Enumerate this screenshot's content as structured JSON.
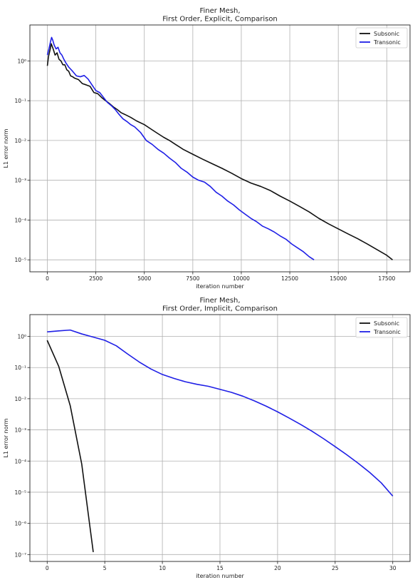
{
  "chart_data": [
    {
      "type": "line",
      "title": "Finer Mesh,\nFirst Order, Explicit, Comparison",
      "xlabel": "iteration number",
      "ylabel": "L1 error norm",
      "yscale": "log",
      "xlim": [
        -900,
        18700
      ],
      "ylim": [
        5e-06,
        8
      ],
      "xticks": [
        0,
        2500,
        5000,
        7500,
        10000,
        12500,
        15000,
        17500
      ],
      "yticks": [
        1,
        0.1,
        0.01,
        0.001,
        0.0001,
        1e-05
      ],
      "ytick_labels": [
        "10⁰",
        "10⁻¹",
        "10⁻²",
        "10⁻³",
        "10⁻⁴",
        "10⁻⁵"
      ],
      "grid": true,
      "legend": "top-right",
      "series": [
        {
          "name": "Subsonic",
          "color": "#111111",
          "points": [
            [
              0,
              0.75
            ],
            [
              60,
              1.3
            ],
            [
              150,
              2.0
            ],
            [
              200,
              2.7
            ],
            [
              300,
              2.0
            ],
            [
              400,
              1.4
            ],
            [
              500,
              1.6
            ],
            [
              600,
              1.1
            ],
            [
              700,
              1.0
            ],
            [
              800,
              0.8
            ],
            [
              900,
              0.8
            ],
            [
              1000,
              0.6
            ],
            [
              1100,
              0.55
            ],
            [
              1200,
              0.42
            ],
            [
              1300,
              0.4
            ],
            [
              1400,
              0.37
            ],
            [
              1600,
              0.34
            ],
            [
              1800,
              0.27
            ],
            [
              2000,
              0.25
            ],
            [
              2200,
              0.23
            ],
            [
              2400,
              0.16
            ],
            [
              2600,
              0.15
            ],
            [
              2800,
              0.12
            ],
            [
              3000,
              0.1
            ],
            [
              3200,
              0.085
            ],
            [
              3400,
              0.07
            ],
            [
              3600,
              0.06
            ],
            [
              3800,
              0.05
            ],
            [
              4000,
              0.045
            ],
            [
              4300,
              0.038
            ],
            [
              4600,
              0.031
            ],
            [
              5000,
              0.025
            ],
            [
              5300,
              0.02
            ],
            [
              5600,
              0.016
            ],
            [
              6000,
              0.012
            ],
            [
              6300,
              0.01
            ],
            [
              6600,
              0.008
            ],
            [
              7000,
              0.006
            ],
            [
              7500,
              0.0045
            ],
            [
              8000,
              0.0034
            ],
            [
              8500,
              0.0026
            ],
            [
              9000,
              0.002
            ],
            [
              9500,
              0.0015
            ],
            [
              10000,
              0.0011
            ],
            [
              10500,
              0.00085
            ],
            [
              11000,
              0.0007
            ],
            [
              11500,
              0.00055
            ],
            [
              12000,
              0.0004
            ],
            [
              12500,
              0.0003
            ],
            [
              13000,
              0.00022
            ],
            [
              13500,
              0.00016
            ],
            [
              14000,
              0.00011
            ],
            [
              14500,
              8e-05
            ],
            [
              15000,
              6e-05
            ],
            [
              15500,
              4.5e-05
            ],
            [
              16000,
              3.4e-05
            ],
            [
              16500,
              2.5e-05
            ],
            [
              17000,
              1.8e-05
            ],
            [
              17500,
              1.3e-05
            ],
            [
              17800,
              1e-05
            ]
          ]
        },
        {
          "name": "Transonic",
          "color": "#1f1fe6",
          "points": [
            [
              0,
              1.4
            ],
            [
              80,
              2.0
            ],
            [
              160,
              3.0
            ],
            [
              220,
              3.9
            ],
            [
              280,
              3.3
            ],
            [
              350,
              2.5
            ],
            [
              450,
              2.0
            ],
            [
              550,
              2.2
            ],
            [
              650,
              1.6
            ],
            [
              750,
              1.4
            ],
            [
              850,
              1.1
            ],
            [
              950,
              0.9
            ],
            [
              1100,
              0.7
            ],
            [
              1300,
              0.55
            ],
            [
              1500,
              0.42
            ],
            [
              1700,
              0.4
            ],
            [
              1900,
              0.43
            ],
            [
              2100,
              0.35
            ],
            [
              2300,
              0.25
            ],
            [
              2500,
              0.18
            ],
            [
              2700,
              0.16
            ],
            [
              2900,
              0.12
            ],
            [
              3100,
              0.09
            ],
            [
              3300,
              0.075
            ],
            [
              3500,
              0.06
            ],
            [
              3700,
              0.045
            ],
            [
              3900,
              0.035
            ],
            [
              4100,
              0.03
            ],
            [
              4300,
              0.025
            ],
            [
              4500,
              0.022
            ],
            [
              4800,
              0.016
            ],
            [
              5100,
              0.01
            ],
            [
              5400,
              0.008
            ],
            [
              5700,
              0.006
            ],
            [
              6000,
              0.0048
            ],
            [
              6300,
              0.0036
            ],
            [
              6600,
              0.0028
            ],
            [
              6900,
              0.002
            ],
            [
              7200,
              0.0016
            ],
            [
              7500,
              0.0012
            ],
            [
              7800,
              0.001
            ],
            [
              8100,
              0.0009
            ],
            [
              8400,
              0.0007
            ],
            [
              8700,
              0.0005
            ],
            [
              9000,
              0.0004
            ],
            [
              9300,
              0.0003
            ],
            [
              9600,
              0.00024
            ],
            [
              9900,
              0.00018
            ],
            [
              10200,
              0.00014
            ],
            [
              10500,
              0.00011
            ],
            [
              10800,
              9e-05
            ],
            [
              11100,
              7e-05
            ],
            [
              11400,
              6e-05
            ],
            [
              11700,
              5e-05
            ],
            [
              12000,
              4e-05
            ],
            [
              12300,
              3.3e-05
            ],
            [
              12600,
              2.5e-05
            ],
            [
              12900,
              2e-05
            ],
            [
              13200,
              1.6e-05
            ],
            [
              13500,
              1.2e-05
            ],
            [
              13750,
              1e-05
            ]
          ]
        }
      ]
    },
    {
      "type": "line",
      "title": "Finer Mesh,\nFirst Order, Implicit, Comparison",
      "xlabel": "iteration number",
      "ylabel": "L1 error norm",
      "yscale": "log",
      "xlim": [
        -1.5,
        31.5
      ],
      "ylim": [
        6e-08,
        5
      ],
      "xticks": [
        0,
        5,
        10,
        15,
        20,
        25,
        30
      ],
      "yticks": [
        1,
        0.1,
        0.01,
        0.001,
        0.0001,
        1e-05,
        1e-06,
        1e-07
      ],
      "ytick_labels": [
        "10⁰",
        "10⁻¹",
        "10⁻²",
        "10⁻³",
        "10⁻⁴",
        "10⁻⁵",
        "10⁻⁶",
        "10⁻⁷"
      ],
      "grid": true,
      "legend": "top-right",
      "series": [
        {
          "name": "Subsonic",
          "color": "#111111",
          "points": [
            [
              0,
              0.75
            ],
            [
              1,
              0.11
            ],
            [
              2,
              0.006
            ],
            [
              3,
              8e-05
            ],
            [
              4,
              1.2e-07
            ]
          ]
        },
        {
          "name": "Transonic",
          "color": "#1f1fe6",
          "points": [
            [
              0,
              1.4
            ],
            [
              1,
              1.5
            ],
            [
              2,
              1.6
            ],
            [
              3,
              1.2
            ],
            [
              4,
              0.95
            ],
            [
              5,
              0.75
            ],
            [
              6,
              0.5
            ],
            [
              7,
              0.27
            ],
            [
              8,
              0.15
            ],
            [
              9,
              0.09
            ],
            [
              10,
              0.06
            ],
            [
              11,
              0.045
            ],
            [
              12,
              0.035
            ],
            [
              13,
              0.029
            ],
            [
              14,
              0.025
            ],
            [
              15,
              0.02
            ],
            [
              16,
              0.016
            ],
            [
              17,
              0.012
            ],
            [
              18,
              0.0085
            ],
            [
              19,
              0.0058
            ],
            [
              20,
              0.0038
            ],
            [
              21,
              0.0024
            ],
            [
              22,
              0.0015
            ],
            [
              23,
              0.0009
            ],
            [
              24,
              0.00052
            ],
            [
              25,
              0.00029
            ],
            [
              26,
              0.00016
            ],
            [
              27,
              8.5e-05
            ],
            [
              28,
              4.3e-05
            ],
            [
              29,
              2e-05
            ],
            [
              30,
              7.5e-06
            ]
          ]
        }
      ]
    }
  ]
}
